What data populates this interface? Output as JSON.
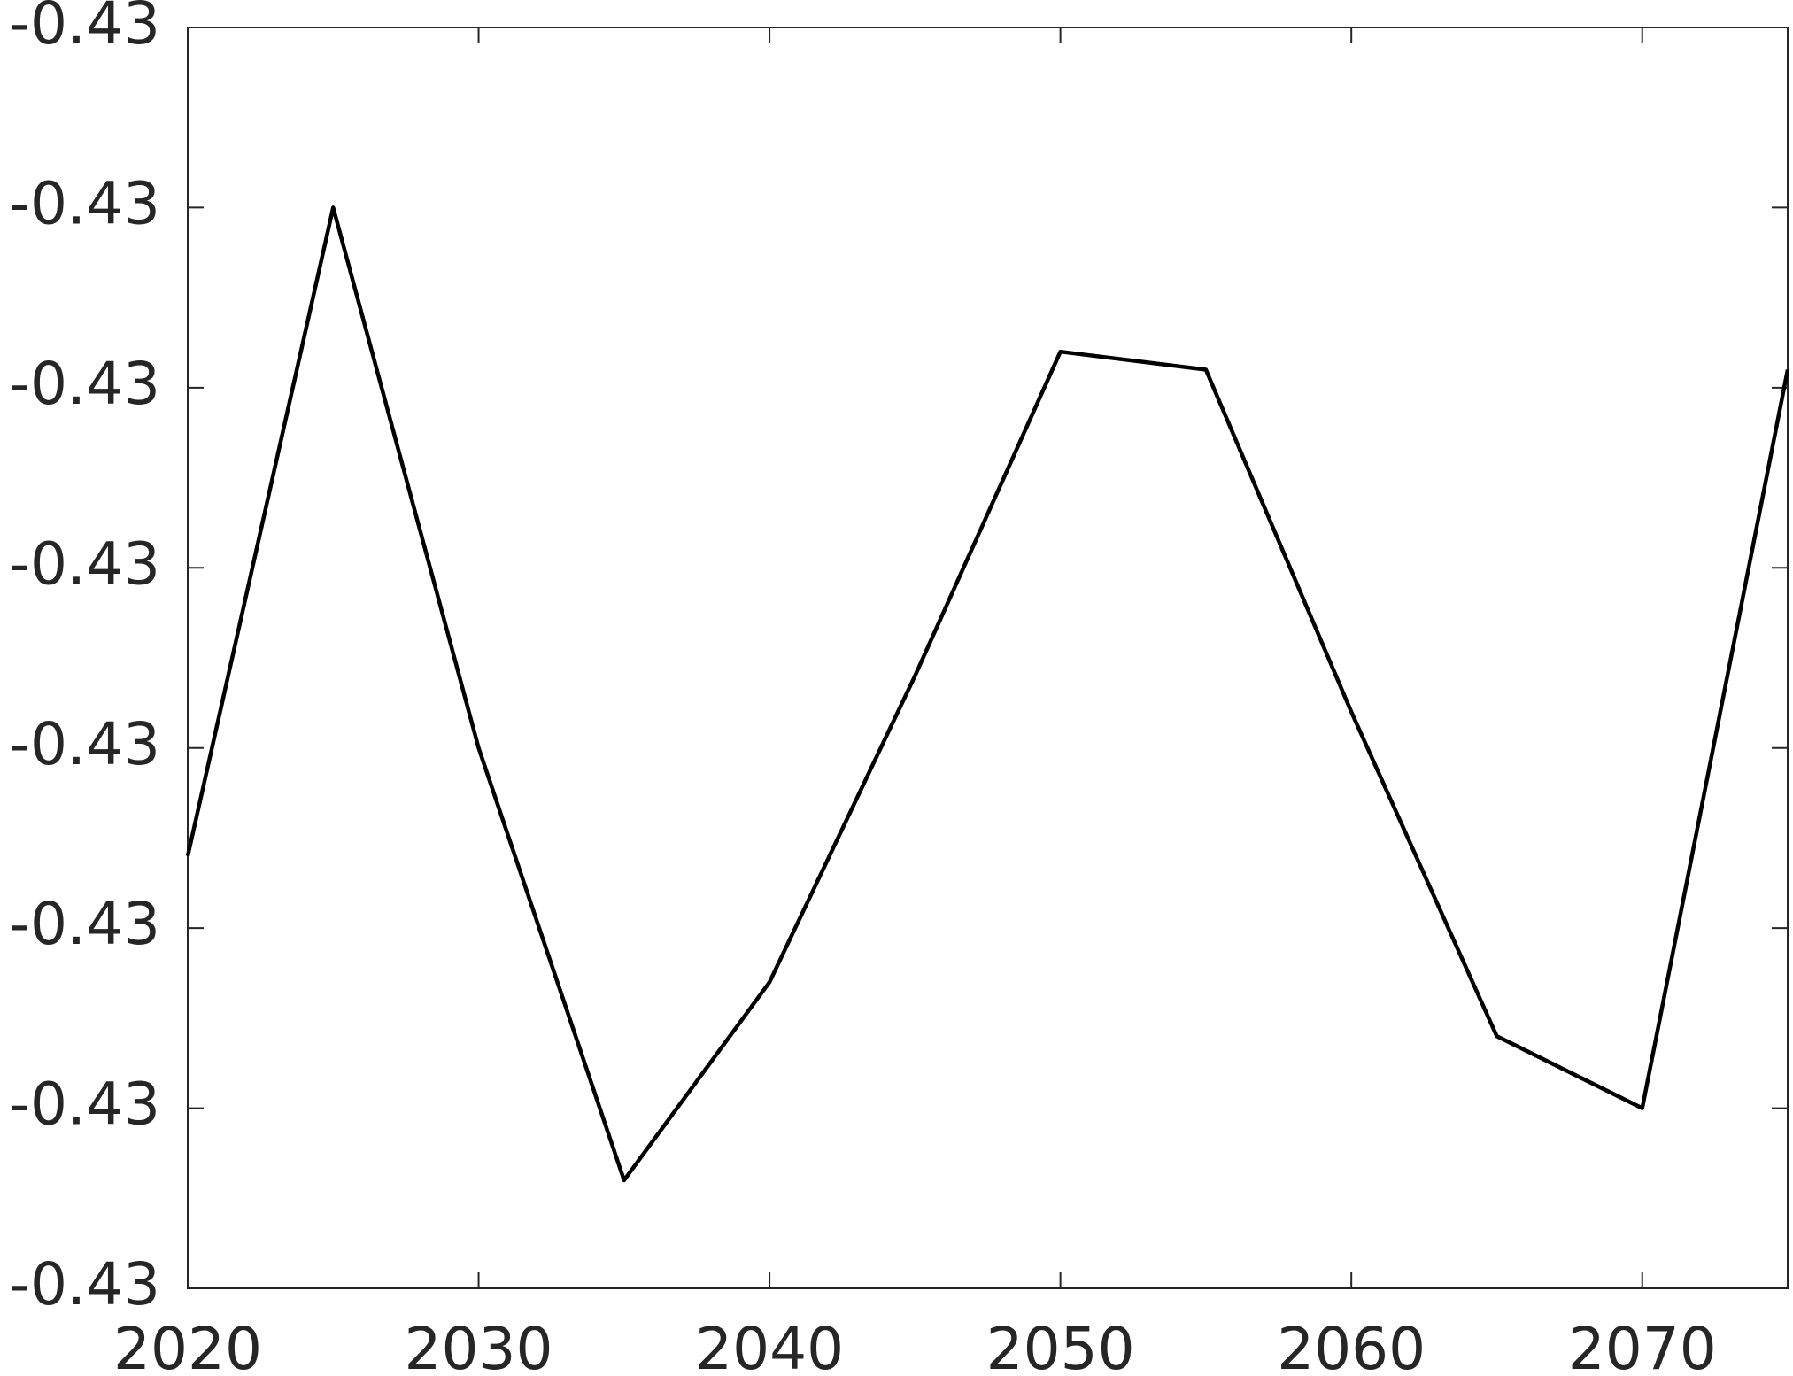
{
  "chart_data": {
    "type": "line",
    "x": [
      2020,
      2025,
      2030,
      2035,
      2040,
      2045,
      2050,
      2055,
      2060,
      2065,
      2070,
      2075
    ],
    "series": [
      {
        "color": "#000000",
        "values": [
          -0.43046,
          -0.4301,
          -0.4304,
          -0.43064,
          -0.43053,
          -0.43036,
          -0.43018,
          -0.43019,
          -0.43038,
          -0.43056,
          -0.4306,
          -0.43019
        ]
      }
    ],
    "xlim": [
      2020,
      2075
    ],
    "xticks": [
      2020,
      2030,
      2040,
      2050,
      2060,
      2070
    ],
    "ylim": [
      -0.4307,
      -0.43
    ],
    "yticks": [
      {
        "value": -0.4307,
        "label": "-0.43"
      },
      {
        "value": -0.4306,
        "label": "-0.43"
      },
      {
        "value": -0.4305,
        "label": "-0.43"
      },
      {
        "value": -0.4304,
        "label": "-0.43"
      },
      {
        "value": -0.4303,
        "label": "-0.43"
      },
      {
        "value": -0.4302,
        "label": "-0.43"
      },
      {
        "value": -0.4301,
        "label": "-0.43"
      },
      {
        "value": -0.43,
        "label": "-0.43"
      }
    ],
    "grid": false
  }
}
